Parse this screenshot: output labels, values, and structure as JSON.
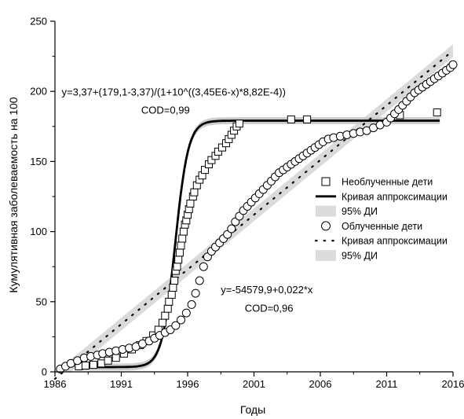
{
  "chart_data": {
    "type": "scatter",
    "title": "",
    "xlabel": "Годы",
    "ylabel": "Кумулятивная заболеваемость на 100",
    "xlim": [
      1986,
      2016
    ],
    "ylim": [
      0,
      250
    ],
    "xticks": [
      1986,
      1991,
      1996,
      2001,
      2006,
      2011,
      2016
    ],
    "yticks": [
      0,
      50,
      100,
      150,
      200,
      250
    ],
    "grid": false,
    "legend_position": "right",
    "series": [
      {
        "name": "Необлученные дети",
        "kind": "scatter",
        "marker": "square",
        "x": [
          1987.8,
          1988.3,
          1988.9,
          1989.5,
          1990.0,
          1990.6,
          1991.2,
          1991.8,
          1992.4,
          1992.9,
          1993.4,
          1993.8,
          1994.1,
          1994.3,
          1994.5,
          1994.6,
          1994.8,
          1994.9,
          1995.0,
          1995.1,
          1995.2,
          1995.3,
          1995.4,
          1995.5,
          1995.6,
          1995.7,
          1995.8,
          1995.9,
          1996.0,
          1996.1,
          1996.2,
          1996.4,
          1996.5,
          1996.7,
          1996.9,
          1997.1,
          1997.3,
          1997.6,
          1997.8,
          1998.1,
          1998.3,
          1998.6,
          1998.9,
          1999.1,
          1999.3,
          1999.5,
          1999.7,
          1999.9,
          2003.8,
          2005.0,
          2012.0,
          2014.8
        ],
        "y": [
          4,
          4.5,
          5,
          6,
          8,
          10,
          13,
          16,
          19,
          22,
          26,
          30,
          35,
          40,
          45,
          50,
          55,
          60,
          65,
          72,
          75,
          80,
          85,
          90,
          95,
          100,
          105,
          108,
          112,
          116,
          120,
          125,
          128,
          133,
          137,
          140,
          144,
          148,
          151,
          154,
          157,
          160,
          163,
          166,
          169,
          172,
          175,
          177,
          180,
          180,
          183,
          185
        ]
      },
      {
        "name": "Кривая аппроксимации",
        "kind": "logistic",
        "A1": 3.37,
        "A2": 179.1,
        "x0": 1995.06,
        "p": 0.000882,
        "x_range": [
          1987.5,
          2015
        ],
        "band_width": 2.5
      },
      {
        "name": "95% ДИ",
        "kind": "band-legend"
      },
      {
        "name": "Облученные дети",
        "kind": "scatter",
        "marker": "circle",
        "x": [
          1986.4,
          1986.8,
          1987.2,
          1987.7,
          1988.2,
          1988.7,
          1989.2,
          1989.6,
          1990.1,
          1990.6,
          1991.1,
          1991.6,
          1992.1,
          1992.6,
          1993.1,
          1993.5,
          1993.9,
          1994.3,
          1994.7,
          1995.1,
          1995.5,
          1995.9,
          1996.3,
          1996.6,
          1996.9,
          1997.2,
          1997.5,
          1997.8,
          1998.1,
          1998.4,
          1998.7,
          1999.0,
          1999.3,
          1999.6,
          1999.9,
          2000.2,
          2000.5,
          2000.8,
          2001.1,
          2001.4,
          2001.7,
          2002.0,
          2002.3,
          2002.6,
          2002.9,
          2003.2,
          2003.5,
          2003.8,
          2004.1,
          2004.4,
          2004.7,
          2005.0,
          2005.3,
          2005.6,
          2005.9,
          2006.2,
          2006.6,
          2007.0,
          2007.5,
          2008.0,
          2008.5,
          2009.0,
          2009.5,
          2010.0,
          2010.5,
          2011.0,
          2011.3,
          2011.6,
          2011.9,
          2012.2,
          2012.5,
          2012.8,
          2013.1,
          2013.4,
          2013.7,
          2014.0,
          2014.3,
          2014.6,
          2014.9,
          2015.2,
          2015.5,
          2015.8,
          2016.0
        ],
        "y": [
          2,
          4,
          6,
          8,
          10,
          11,
          12,
          13,
          14,
          15,
          16,
          17,
          18,
          20,
          22,
          24,
          26,
          28,
          30,
          33,
          37,
          42,
          48,
          56,
          65,
          75,
          82,
          86,
          89,
          92,
          95,
          98,
          102,
          107,
          111,
          115,
          118,
          121,
          124,
          127,
          130,
          133,
          136,
          139,
          142,
          144,
          146,
          148,
          150,
          152,
          154,
          156,
          158,
          160,
          162,
          164,
          166,
          167,
          168,
          169,
          170,
          171,
          172,
          174,
          176,
          178,
          181,
          184,
          187,
          190,
          193,
          196,
          199,
          201,
          203,
          205,
          207,
          209,
          211,
          213,
          215,
          217,
          219
        ]
      },
      {
        "name": "Кривая аппроксимации",
        "kind": "linear",
        "intercept": -54579.9,
        "slope": 0.022,
        "slope_plot": 7.8,
        "pivot_x": 2001,
        "pivot_y": 112,
        "x_range": [
          1986,
          2016
        ],
        "band_width": 4.5
      },
      {
        "name": "95% ДИ",
        "kind": "band-legend"
      }
    ],
    "annotations": [
      {
        "text": "y=3,37+(179,1-3,37)/(1+10^((3,45E6-x)*8,82E-4))",
        "x": 1986.5,
        "y": 197
      },
      {
        "text": "COD=0,99",
        "x": 1992.5,
        "y": 184
      },
      {
        "text": "y=-54579,9+0,022*x",
        "x": 1998.5,
        "y": 56
      },
      {
        "text": "COD=0,96",
        "x": 2000.3,
        "y": 43
      }
    ]
  }
}
